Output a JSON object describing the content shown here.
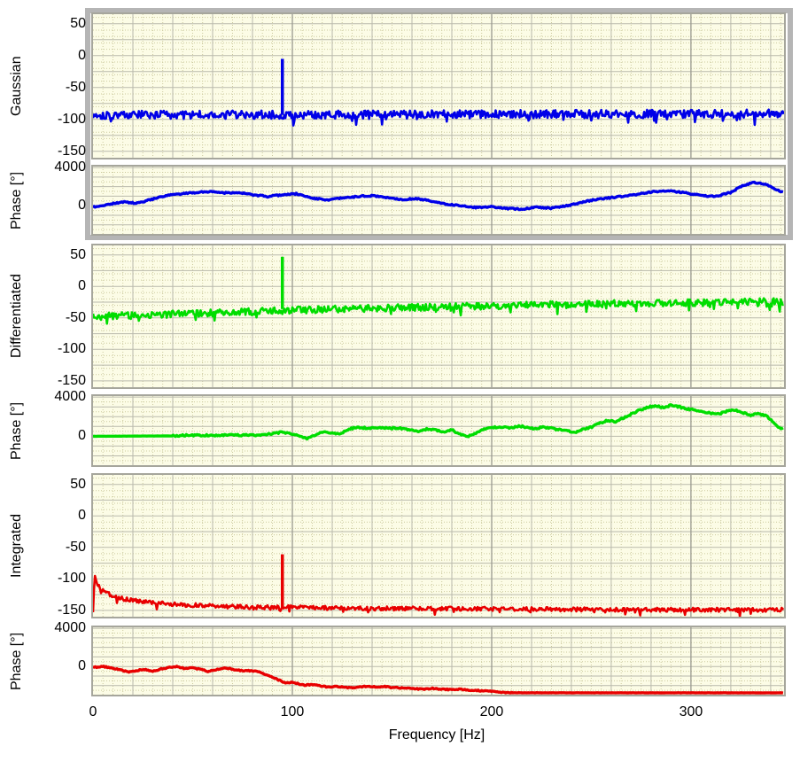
{
  "axis": {
    "x_title": "Frequency [Hz]",
    "x_ticks": [
      0,
      100,
      200,
      300
    ],
    "x_max": 346.7,
    "mag_ticks": [
      50,
      0,
      -50,
      -100,
      -150
    ],
    "mag_range": [
      -160,
      65
    ],
    "phase_ticks": [
      4000,
      0
    ],
    "phase_range": [
      -2950,
      4100
    ]
  },
  "colors": {
    "plot_bg": "#fcfce6",
    "grid_dotted": "#ccca9e",
    "grid_solid": "#b9b9ac",
    "grid_dark": "#9a9a90",
    "plot_border": "#a6a69c",
    "group_frame": "#b5b5b5",
    "blue": "#0000e8",
    "green": "#00dd00",
    "red": "#e80000"
  },
  "chart_data": [
    {
      "id": "gaussian-magnitude",
      "type": "line",
      "ylabel": "Gaussian",
      "color_key": "blue",
      "axis": "mag",
      "seed": 101,
      "step": 0.5,
      "noise": 6.5,
      "down_prob": 0.05,
      "down_mag": 16,
      "trend": [
        [
          0,
          -93
        ],
        [
          346.7,
          -91
        ]
      ],
      "spike": {
        "x": 95,
        "base": -93,
        "peak": -5
      }
    },
    {
      "id": "gaussian-phase",
      "type": "line",
      "ylabel": "Phase [°]",
      "color_key": "blue",
      "axis": "phase",
      "seed": 202,
      "step": 0.6,
      "noise": 70,
      "trend": [
        [
          0,
          -150
        ],
        [
          8,
          150
        ],
        [
          15,
          400
        ],
        [
          22,
          250
        ],
        [
          30,
          700
        ],
        [
          38,
          1100
        ],
        [
          45,
          1250
        ],
        [
          52,
          1400
        ],
        [
          59,
          1500
        ],
        [
          66,
          1350
        ],
        [
          72,
          1400
        ],
        [
          80,
          1150
        ],
        [
          88,
          950
        ],
        [
          95,
          1150
        ],
        [
          102,
          1250
        ],
        [
          110,
          800
        ],
        [
          118,
          600
        ],
        [
          125,
          800
        ],
        [
          132,
          950
        ],
        [
          140,
          1050
        ],
        [
          148,
          850
        ],
        [
          155,
          650
        ],
        [
          163,
          750
        ],
        [
          170,
          450
        ],
        [
          178,
          150
        ],
        [
          185,
          0
        ],
        [
          193,
          -200
        ],
        [
          200,
          -100
        ],
        [
          208,
          -300
        ],
        [
          215,
          -350
        ],
        [
          223,
          -150
        ],
        [
          230,
          -250
        ],
        [
          238,
          0
        ],
        [
          245,
          350
        ],
        [
          252,
          650
        ],
        [
          260,
          850
        ],
        [
          268,
          1050
        ],
        [
          275,
          1250
        ],
        [
          282,
          1500
        ],
        [
          290,
          1550
        ],
        [
          297,
          1350
        ],
        [
          305,
          1100
        ],
        [
          312,
          950
        ],
        [
          320,
          1400
        ],
        [
          326,
          2100
        ],
        [
          332,
          2450
        ],
        [
          338,
          2200
        ],
        [
          342,
          1800
        ],
        [
          346.7,
          1350
        ]
      ],
      "spike": null
    },
    {
      "id": "differentiated-magnitude",
      "type": "line",
      "ylabel": "Differentiated",
      "color_key": "green",
      "axis": "mag",
      "seed": 303,
      "step": 0.5,
      "noise": 5.5,
      "down_prob": 0.05,
      "down_mag": 13,
      "trend": [
        [
          0,
          -48
        ],
        [
          40,
          -44
        ],
        [
          80,
          -40
        ],
        [
          120,
          -36
        ],
        [
          180,
          -32
        ],
        [
          250,
          -28
        ],
        [
          346.7,
          -24
        ]
      ],
      "spike": {
        "x": 95,
        "base": -36,
        "peak": 47
      }
    },
    {
      "id": "differentiated-phase",
      "type": "line",
      "ylabel": "Phase [°]",
      "color_key": "green",
      "axis": "phase",
      "seed": 404,
      "step": 0.6,
      "noise": 85,
      "noise_start_hz": 40,
      "noise_low": 5,
      "trend": [
        [
          0,
          0
        ],
        [
          40,
          30
        ],
        [
          45,
          90
        ],
        [
          85,
          130
        ],
        [
          90,
          250
        ],
        [
          95,
          430
        ],
        [
          100,
          250
        ],
        [
          104,
          -80
        ],
        [
          108,
          -220
        ],
        [
          112,
          150
        ],
        [
          116,
          470
        ],
        [
          120,
          300
        ],
        [
          124,
          200
        ],
        [
          128,
          730
        ],
        [
          133,
          900
        ],
        [
          138,
          820
        ],
        [
          143,
          880
        ],
        [
          148,
          800
        ],
        [
          153,
          850
        ],
        [
          158,
          700
        ],
        [
          163,
          500
        ],
        [
          168,
          760
        ],
        [
          172,
          640
        ],
        [
          177,
          400
        ],
        [
          180,
          660
        ],
        [
          184,
          200
        ],
        [
          188,
          -60
        ],
        [
          192,
          320
        ],
        [
          196,
          700
        ],
        [
          200,
          860
        ],
        [
          205,
          950
        ],
        [
          210,
          860
        ],
        [
          214,
          1050
        ],
        [
          218,
          900
        ],
        [
          222,
          760
        ],
        [
          226,
          950
        ],
        [
          230,
          800
        ],
        [
          234,
          660
        ],
        [
          238,
          560
        ],
        [
          242,
          420
        ],
        [
          246,
          700
        ],
        [
          250,
          920
        ],
        [
          254,
          1300
        ],
        [
          258,
          1600
        ],
        [
          262,
          1480
        ],
        [
          266,
          1850
        ],
        [
          270,
          2250
        ],
        [
          274,
          2650
        ],
        [
          278,
          2950
        ],
        [
          282,
          3100
        ],
        [
          286,
          2950
        ],
        [
          290,
          3150
        ],
        [
          294,
          3000
        ],
        [
          298,
          2800
        ],
        [
          302,
          2700
        ],
        [
          306,
          2500
        ],
        [
          310,
          2350
        ],
        [
          314,
          2250
        ],
        [
          318,
          2550
        ],
        [
          322,
          2700
        ],
        [
          326,
          2400
        ],
        [
          330,
          2150
        ],
        [
          334,
          2300
        ],
        [
          338,
          2050
        ],
        [
          342,
          1300
        ],
        [
          345,
          700
        ],
        [
          346.7,
          1000
        ]
      ],
      "spike": null
    },
    {
      "id": "integrated-magnitude",
      "type": "line",
      "ylabel": "Integrated",
      "color_key": "red",
      "axis": "mag",
      "seed": 505,
      "step": 0.5,
      "noise": 3.2,
      "down_prob": 0.06,
      "down_mag": 8,
      "trend": [
        [
          0,
          -150
        ],
        [
          0.8,
          -96
        ],
        [
          2,
          -107
        ],
        [
          4,
          -116
        ],
        [
          7,
          -122
        ],
        [
          10,
          -127
        ],
        [
          14,
          -131
        ],
        [
          20,
          -134
        ],
        [
          27,
          -137
        ],
        [
          35,
          -139
        ],
        [
          45,
          -141
        ],
        [
          60,
          -143
        ],
        [
          80,
          -145
        ],
        [
          100,
          -145
        ],
        [
          130,
          -147
        ],
        [
          170,
          -147
        ],
        [
          220,
          -148
        ],
        [
          280,
          -149
        ],
        [
          346.7,
          -149
        ]
      ],
      "spike": {
        "x": 95,
        "base": -145,
        "peak": -61
      }
    },
    {
      "id": "integrated-phase",
      "type": "line",
      "ylabel": "Phase [°]",
      "color_key": "red",
      "axis": "phase",
      "seed": 606,
      "step": 0.6,
      "noise": 60,
      "noise_end_hz": 210,
      "noise_tail": 12,
      "trend": [
        [
          0,
          -100
        ],
        [
          5,
          0
        ],
        [
          10,
          -180
        ],
        [
          15,
          -420
        ],
        [
          18,
          -600
        ],
        [
          22,
          -420
        ],
        [
          26,
          -300
        ],
        [
          30,
          -520
        ],
        [
          34,
          -260
        ],
        [
          38,
          -120
        ],
        [
          42,
          30
        ],
        [
          46,
          -220
        ],
        [
          50,
          -120
        ],
        [
          55,
          -360
        ],
        [
          58,
          -520
        ],
        [
          62,
          -320
        ],
        [
          66,
          -180
        ],
        [
          70,
          -280
        ],
        [
          74,
          -420
        ],
        [
          78,
          -460
        ],
        [
          82,
          -520
        ],
        [
          85,
          -700
        ],
        [
          88,
          -950
        ],
        [
          91,
          -1200
        ],
        [
          94,
          -1500
        ],
        [
          97,
          -1750
        ],
        [
          100,
          -1650
        ],
        [
          103,
          -1800
        ],
        [
          106,
          -1950
        ],
        [
          110,
          -1880
        ],
        [
          114,
          -2050
        ],
        [
          118,
          -2150
        ],
        [
          122,
          -2080
        ],
        [
          126,
          -2180
        ],
        [
          130,
          -2250
        ],
        [
          134,
          -2120
        ],
        [
          138,
          -2050
        ],
        [
          142,
          -2150
        ],
        [
          146,
          -2080
        ],
        [
          150,
          -2200
        ],
        [
          155,
          -2250
        ],
        [
          160,
          -2320
        ],
        [
          165,
          -2380
        ],
        [
          170,
          -2300
        ],
        [
          175,
          -2380
        ],
        [
          180,
          -2420
        ],
        [
          185,
          -2380
        ],
        [
          190,
          -2480
        ],
        [
          195,
          -2550
        ],
        [
          200,
          -2620
        ],
        [
          205,
          -2720
        ],
        [
          210,
          -2750
        ],
        [
          346.7,
          -2760
        ]
      ],
      "spike": null
    }
  ]
}
